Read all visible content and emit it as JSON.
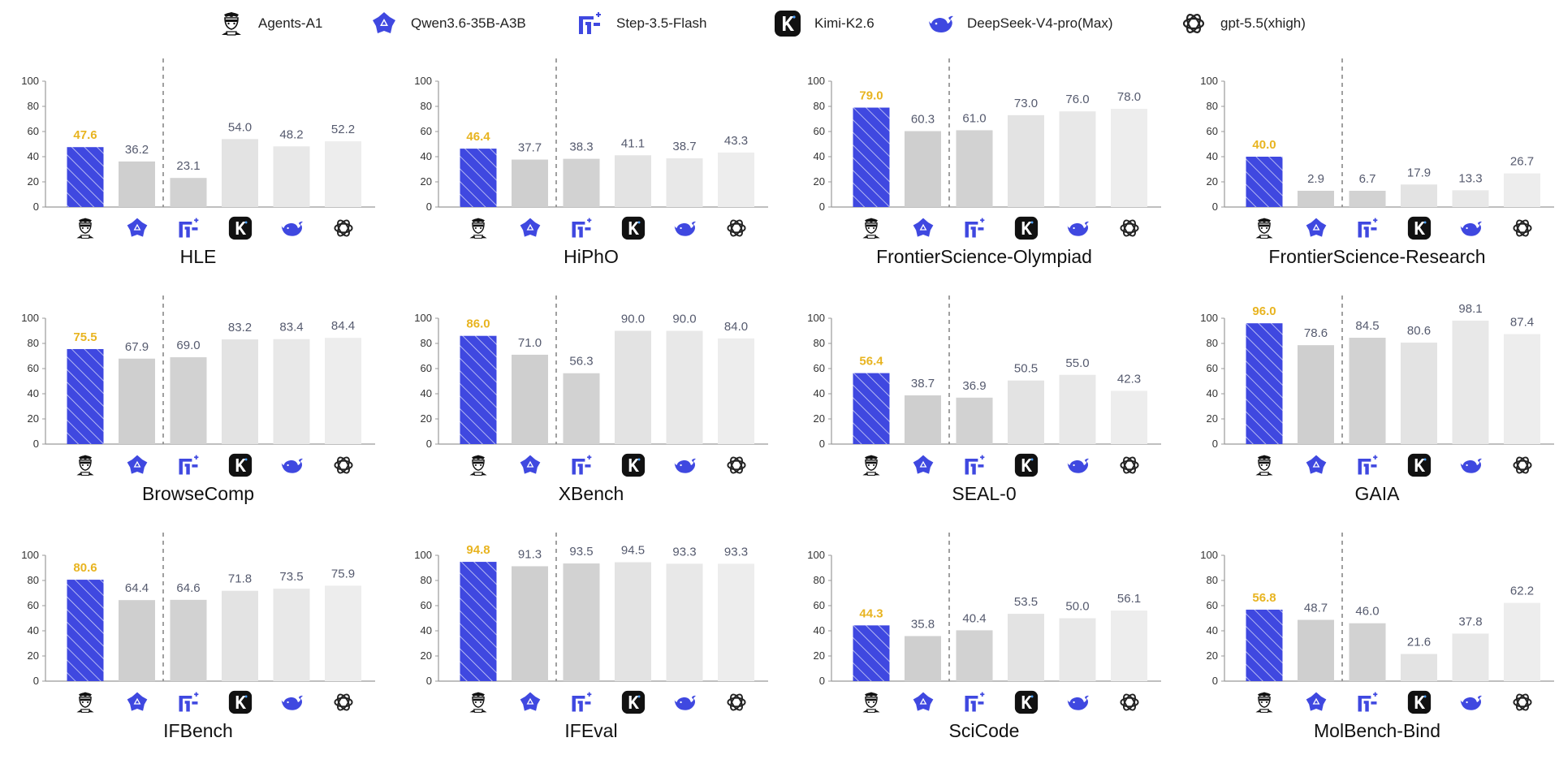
{
  "legend": [
    {
      "name": "Agents-A1",
      "icon": "agents-a1-icon"
    },
    {
      "name": "Qwen3.6-35B-A3B",
      "icon": "qwen-icon"
    },
    {
      "name": "Step-3.5-Flash",
      "icon": "step-icon"
    },
    {
      "name": "Kimi-K2.6",
      "icon": "kimi-icon"
    },
    {
      "name": "DeepSeek-V4-pro(Max)",
      "icon": "deepseek-icon"
    },
    {
      "name": "gpt-5.5(xhigh)",
      "icon": "openai-icon"
    }
  ],
  "colors": {
    "highlight_bar": "#3f48e0",
    "highlight_value": "#e8b420",
    "bar_shades": [
      "#3f48e0",
      "#cfcfcf",
      "#d2d2d2",
      "#e3e3e3",
      "#e8e8e8",
      "#ededed"
    ],
    "value_text": "#555a6e",
    "axis": "#999999",
    "separator": "#888888"
  },
  "chart_data": [
    {
      "type": "bar",
      "title": "HLE",
      "categories": [
        "Agents-A1",
        "Qwen3.6-35B-A3B",
        "Step-3.5-Flash",
        "Kimi-K2.6",
        "DeepSeek-V4-pro(Max)",
        "gpt-5.5(xhigh)"
      ],
      "values": [
        47.6,
        36.2,
        23.1,
        54.0,
        48.2,
        52.2
      ],
      "value_labels": [
        "47.6",
        "36.2",
        "23.1",
        "54.0",
        "48.2",
        "52.2"
      ],
      "ylim": [
        0,
        100
      ],
      "yticks": [
        "0",
        "20",
        "40",
        "60",
        "80",
        "100"
      ],
      "grid": false
    },
    {
      "type": "bar",
      "title": "HiPhO",
      "categories": [
        "Agents-A1",
        "Qwen3.6-35B-A3B",
        "Step-3.5-Flash",
        "Kimi-K2.6",
        "DeepSeek-V4-pro(Max)",
        "gpt-5.5(xhigh)"
      ],
      "values": [
        46.4,
        37.7,
        38.3,
        41.1,
        38.7,
        43.3
      ],
      "value_labels": [
        "46.4",
        "37.7",
        "38.3",
        "41.1",
        "38.7",
        "43.3"
      ],
      "ylim": [
        0,
        100
      ],
      "yticks": [
        "0",
        "20",
        "40",
        "60",
        "80",
        "100"
      ],
      "grid": false
    },
    {
      "type": "bar",
      "title": "FrontierScience-Olympiad",
      "categories": [
        "Agents-A1",
        "Qwen3.6-35B-A3B",
        "Step-3.5-Flash",
        "Kimi-K2.6",
        "DeepSeek-V4-pro(Max)",
        "gpt-5.5(xhigh)"
      ],
      "values": [
        79.0,
        60.3,
        61.0,
        73.0,
        76.0,
        78.0
      ],
      "value_labels": [
        "79.0",
        "60.3",
        "61.0",
        "73.0",
        "76.0",
        "78.0"
      ],
      "ylim": [
        0,
        100
      ],
      "yticks": [
        "0",
        "20",
        "40",
        "60",
        "80",
        "100"
      ],
      "grid": false
    },
    {
      "type": "bar",
      "title": "FrontierScience-Research",
      "categories": [
        "Agents-A1",
        "Qwen3.6-35B-A3B",
        "Step-3.5-Flash",
        "Kimi-K2.6",
        "DeepSeek-V4-pro(Max)",
        "gpt-5.5(xhigh)"
      ],
      "values": [
        40.0,
        2.9,
        6.7,
        17.9,
        13.3,
        26.7
      ],
      "value_labels": [
        "40.0",
        "2.9",
        "6.7",
        "17.9",
        "13.3",
        "26.7"
      ],
      "ylim": [
        0,
        100
      ],
      "yticks": [
        "0",
        "20",
        "40",
        "60",
        "80",
        "100"
      ],
      "grid": false
    },
    {
      "type": "bar",
      "title": "BrowseComp",
      "categories": [
        "Agents-A1",
        "Qwen3.6-35B-A3B",
        "Step-3.5-Flash",
        "Kimi-K2.6",
        "DeepSeek-V4-pro(Max)",
        "gpt-5.5(xhigh)"
      ],
      "values": [
        75.5,
        67.9,
        69.0,
        83.2,
        83.4,
        84.4
      ],
      "value_labels": [
        "75.5",
        "67.9",
        "69.0",
        "83.2",
        "83.4",
        "84.4"
      ],
      "ylim": [
        0,
        100
      ],
      "yticks": [
        "0",
        "20",
        "40",
        "60",
        "80",
        "100"
      ],
      "grid": false
    },
    {
      "type": "bar",
      "title": "XBench",
      "categories": [
        "Agents-A1",
        "Qwen3.6-35B-A3B",
        "Step-3.5-Flash",
        "Kimi-K2.6",
        "DeepSeek-V4-pro(Max)",
        "gpt-5.5(xhigh)"
      ],
      "values": [
        86.0,
        71.0,
        56.3,
        90.0,
        90.0,
        84.0
      ],
      "value_labels": [
        "86.0",
        "71.0",
        "56.3",
        "90.0",
        "90.0",
        "84.0"
      ],
      "ylim": [
        0,
        100
      ],
      "yticks": [
        "0",
        "20",
        "40",
        "60",
        "80",
        "100"
      ],
      "grid": false
    },
    {
      "type": "bar",
      "title": "SEAL-0",
      "categories": [
        "Agents-A1",
        "Qwen3.6-35B-A3B",
        "Step-3.5-Flash",
        "Kimi-K2.6",
        "DeepSeek-V4-pro(Max)",
        "gpt-5.5(xhigh)"
      ],
      "values": [
        56.4,
        38.7,
        36.9,
        50.5,
        55.0,
        42.3
      ],
      "value_labels": [
        "56.4",
        "38.7",
        "36.9",
        "50.5",
        "55.0",
        "42.3"
      ],
      "ylim": [
        0,
        100
      ],
      "yticks": [
        "0",
        "20",
        "40",
        "60",
        "80",
        "100"
      ],
      "grid": false
    },
    {
      "type": "bar",
      "title": "GAIA",
      "categories": [
        "Agents-A1",
        "Qwen3.6-35B-A3B",
        "Step-3.5-Flash",
        "Kimi-K2.6",
        "DeepSeek-V4-pro(Max)",
        "gpt-5.5(xhigh)"
      ],
      "values": [
        96.0,
        78.6,
        84.5,
        80.6,
        98.1,
        87.4
      ],
      "value_labels": [
        "96.0",
        "78.6",
        "84.5",
        "80.6",
        "98.1",
        "87.4"
      ],
      "ylim": [
        0,
        100
      ],
      "yticks": [
        "0",
        "20",
        "40",
        "60",
        "80",
        "100"
      ],
      "grid": false
    },
    {
      "type": "bar",
      "title": "IFBench",
      "categories": [
        "Agents-A1",
        "Qwen3.6-35B-A3B",
        "Step-3.5-Flash",
        "Kimi-K2.6",
        "DeepSeek-V4-pro(Max)",
        "gpt-5.5(xhigh)"
      ],
      "values": [
        80.6,
        64.4,
        64.6,
        71.8,
        73.5,
        75.9
      ],
      "value_labels": [
        "80.6",
        "64.4",
        "64.6",
        "71.8",
        "73.5",
        "75.9"
      ],
      "ylim": [
        0,
        100
      ],
      "yticks": [
        "0",
        "20",
        "40",
        "60",
        "80",
        "100"
      ],
      "grid": false
    },
    {
      "type": "bar",
      "title": "IFEval",
      "categories": [
        "Agents-A1",
        "Qwen3.6-35B-A3B",
        "Step-3.5-Flash",
        "Kimi-K2.6",
        "DeepSeek-V4-pro(Max)",
        "gpt-5.5(xhigh)"
      ],
      "values": [
        94.8,
        91.3,
        93.5,
        94.5,
        93.3,
        93.3
      ],
      "value_labels": [
        "94.8",
        "91.3",
        "93.5",
        "94.5",
        "93.3",
        "93.3"
      ],
      "ylim": [
        0,
        100
      ],
      "yticks": [
        "0",
        "20",
        "40",
        "60",
        "80",
        "100"
      ],
      "grid": false
    },
    {
      "type": "bar",
      "title": "SciCode",
      "categories": [
        "Agents-A1",
        "Qwen3.6-35B-A3B",
        "Step-3.5-Flash",
        "Kimi-K2.6",
        "DeepSeek-V4-pro(Max)",
        "gpt-5.5(xhigh)"
      ],
      "values": [
        44.3,
        35.8,
        40.4,
        53.5,
        50.0,
        56.1
      ],
      "value_labels": [
        "44.3",
        "35.8",
        "40.4",
        "53.5",
        "50.0",
        "56.1"
      ],
      "ylim": [
        0,
        100
      ],
      "yticks": [
        "0",
        "20",
        "40",
        "60",
        "80",
        "100"
      ],
      "grid": false
    },
    {
      "type": "bar",
      "title": "MolBench-Bind",
      "categories": [
        "Agents-A1",
        "Qwen3.6-35B-A3B",
        "Step-3.5-Flash",
        "Kimi-K2.6",
        "DeepSeek-V4-pro(Max)",
        "gpt-5.5(xhigh)"
      ],
      "values": [
        56.8,
        48.7,
        46.0,
        21.6,
        37.8,
        62.2
      ],
      "value_labels": [
        "56.8",
        "48.7",
        "46.0",
        "21.6",
        "37.8",
        "62.2"
      ],
      "ylim": [
        0,
        100
      ],
      "yticks": [
        "0",
        "20",
        "40",
        "60",
        "80",
        "100"
      ],
      "grid": false
    }
  ]
}
